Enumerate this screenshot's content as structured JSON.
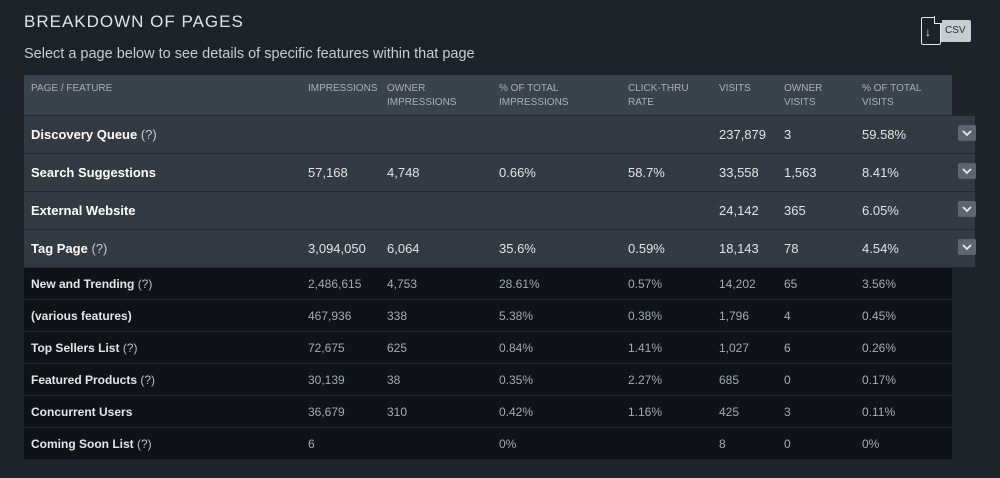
{
  "title": "BREAKDOWN OF PAGES",
  "subtitle": "Select a page below to see details of specific features within that page",
  "csv_label": "CSV",
  "columns": [
    [
      "PAGE / FEATURE",
      ""
    ],
    [
      "IMPRESSIONS",
      ""
    ],
    [
      "OWNER",
      "IMPRESSIONS"
    ],
    [
      "% OF TOTAL",
      "IMPRESSIONS"
    ],
    [
      "CLICK-THRU",
      "RATE"
    ],
    [
      "VISITS",
      ""
    ],
    [
      "OWNER",
      "VISITS"
    ],
    [
      "% OF TOTAL",
      "VISITS"
    ]
  ],
  "help_mark": "(?)",
  "pages": [
    {
      "name": "Discovery Queue",
      "help": true,
      "impressions": "",
      "owner_impressions": "",
      "pct_impressions": "",
      "ctr": "",
      "visits": "237,879",
      "owner_visits": "3",
      "pct_visits": "59.58%"
    },
    {
      "name": "Search Suggestions",
      "help": false,
      "impressions": "57,168",
      "owner_impressions": "4,748",
      "pct_impressions": "0.66%",
      "ctr": "58.7%",
      "visits": "33,558",
      "owner_visits": "1,563",
      "pct_visits": "8.41%"
    },
    {
      "name": "External Website",
      "help": false,
      "impressions": "",
      "owner_impressions": "",
      "pct_impressions": "",
      "ctr": "",
      "visits": "24,142",
      "owner_visits": "365",
      "pct_visits": "6.05%"
    },
    {
      "name": "Tag Page",
      "help": true,
      "impressions": "3,094,050",
      "owner_impressions": "6,064",
      "pct_impressions": "35.6%",
      "ctr": "0.59%",
      "visits": "18,143",
      "owner_visits": "78",
      "pct_visits": "4.54%"
    }
  ],
  "features": [
    {
      "name": "New and Trending",
      "help": true,
      "impressions": "2,486,615",
      "owner_impressions": "4,753",
      "pct_impressions": "28.61%",
      "ctr": "0.57%",
      "visits": "14,202",
      "owner_visits": "65",
      "pct_visits": "3.56%"
    },
    {
      "name": "(various features)",
      "help": false,
      "impressions": "467,936",
      "owner_impressions": "338",
      "pct_impressions": "5.38%",
      "ctr": "0.38%",
      "visits": "1,796",
      "owner_visits": "4",
      "pct_visits": "0.45%"
    },
    {
      "name": "Top Sellers List",
      "help": true,
      "impressions": "72,675",
      "owner_impressions": "625",
      "pct_impressions": "0.84%",
      "ctr": "1.41%",
      "visits": "1,027",
      "owner_visits": "6",
      "pct_visits": "0.26%"
    },
    {
      "name": "Featured Products",
      "help": true,
      "impressions": "30,139",
      "owner_impressions": "38",
      "pct_impressions": "0.35%",
      "ctr": "2.27%",
      "visits": "685",
      "owner_visits": "0",
      "pct_visits": "0.17%"
    },
    {
      "name": "Concurrent Users",
      "help": false,
      "impressions": "36,679",
      "owner_impressions": "310",
      "pct_impressions": "0.42%",
      "ctr": "1.16%",
      "visits": "425",
      "owner_visits": "3",
      "pct_visits": "0.11%"
    },
    {
      "name": "Coming Soon List",
      "help": true,
      "impressions": "6",
      "owner_impressions": "",
      "pct_impressions": "0%",
      "ctr": "",
      "visits": "8",
      "owner_visits": "0",
      "pct_visits": "0%"
    }
  ]
}
